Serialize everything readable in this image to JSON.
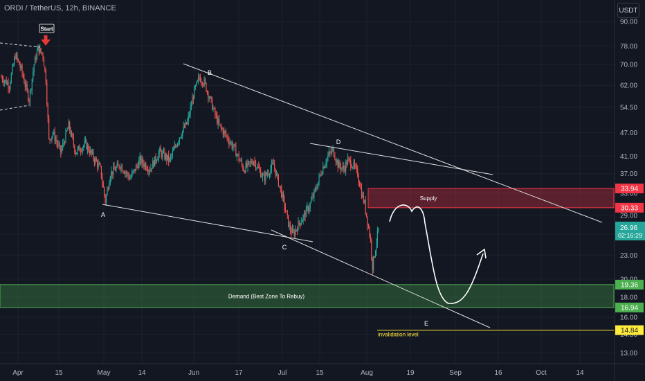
{
  "title": "ORDI / TetherUS, 12h, BINANCE",
  "currency": "USDT",
  "colors": {
    "background": "#131722",
    "grid": "#1e222d",
    "up": "#26a69a",
    "down": "#ef5350",
    "axis_text": "#b2b5be",
    "supply_fill": "rgba(242,54,69,0.32)",
    "supply_border": "#f23645",
    "demand_fill": "rgba(76,175,80,0.30)",
    "demand_border": "#4caf50",
    "invalidation": "#ffeb3b",
    "drawing": "#e0e0e0",
    "last_price_bg": "#26a69a"
  },
  "chart_data": {
    "type": "candlestick",
    "y_scale": "log",
    "ylim": [
      12.3,
      102
    ],
    "y_ticks": [
      "90.00",
      "78.00",
      "70.00",
      "62.00",
      "54.50",
      "47.00",
      "41.00",
      "37.00",
      "33.00",
      "29.00",
      "26.00",
      "23.00",
      "20.00",
      "18.00",
      "16.00",
      "14.50",
      "13.00"
    ],
    "x_ticks": [
      "Apr",
      "15",
      "May",
      "14",
      "Jun",
      "17",
      "Jul",
      "15",
      "Aug",
      "19",
      "Sep",
      "16",
      "Oct",
      "14"
    ],
    "price_tags": [
      {
        "label": "33.94",
        "color": "#f23645"
      },
      {
        "label": "30.33",
        "color": "#f23645"
      },
      {
        "label": "19.36",
        "color": "#4caf50"
      },
      {
        "label": "16.94",
        "color": "#4caf50"
      },
      {
        "label": "14.84",
        "color": "#ffeb3b"
      }
    ],
    "last_price": {
      "value": "26.96",
      "countdown": "02:16:29"
    },
    "zones": [
      {
        "name": "Supply",
        "top": 33.94,
        "bottom": 30.33
      },
      {
        "name": "Demand (Best Zone To Rebuy)",
        "top": 19.36,
        "bottom": 16.94
      }
    ],
    "invalidation": {
      "label": "invalidation level",
      "value": 14.84
    },
    "wave_points": [
      {
        "label": "A",
        "price": 31.5
      },
      {
        "label": "B",
        "price": 66.0
      },
      {
        "label": "C",
        "price": 26.0
      },
      {
        "label": "D",
        "price": 43.5
      },
      {
        "label": "E",
        "price": ""
      }
    ],
    "start_label": "Start",
    "path": [
      {
        "i": 0,
        "c": 65
      },
      {
        "i": 8,
        "c": 62
      },
      {
        "i": 14,
        "c": 74
      },
      {
        "i": 20,
        "c": 68
      },
      {
        "i": 28,
        "c": 57
      },
      {
        "i": 33,
        "c": 70
      },
      {
        "i": 37,
        "c": 77
      },
      {
        "i": 42,
        "c": 74
      },
      {
        "i": 45,
        "c": 64
      },
      {
        "i": 48,
        "c": 45
      },
      {
        "i": 52,
        "c": 47
      },
      {
        "i": 60,
        "c": 42
      },
      {
        "i": 68,
        "c": 49
      },
      {
        "i": 75,
        "c": 42
      },
      {
        "i": 85,
        "c": 44
      },
      {
        "i": 100,
        "c": 38
      },
      {
        "i": 105,
        "c": 31.5
      },
      {
        "i": 110,
        "c": 37
      },
      {
        "i": 120,
        "c": 39
      },
      {
        "i": 130,
        "c": 36
      },
      {
        "i": 140,
        "c": 40
      },
      {
        "i": 150,
        "c": 38
      },
      {
        "i": 160,
        "c": 42
      },
      {
        "i": 170,
        "c": 40
      },
      {
        "i": 180,
        "c": 46
      },
      {
        "i": 188,
        "c": 50
      },
      {
        "i": 195,
        "c": 60
      },
      {
        "i": 200,
        "c": 65
      },
      {
        "i": 205,
        "c": 63
      },
      {
        "i": 210,
        "c": 58
      },
      {
        "i": 215,
        "c": 53
      },
      {
        "i": 220,
        "c": 49
      },
      {
        "i": 225,
        "c": 47
      },
      {
        "i": 235,
        "c": 43
      },
      {
        "i": 245,
        "c": 38
      },
      {
        "i": 255,
        "c": 40
      },
      {
        "i": 265,
        "c": 36
      },
      {
        "i": 275,
        "c": 39
      },
      {
        "i": 283,
        "c": 33
      },
      {
        "i": 287,
        "c": 30
      },
      {
        "i": 291,
        "c": 27
      },
      {
        "i": 295,
        "c": 26
      },
      {
        "i": 300,
        "c": 27.5
      },
      {
        "i": 306,
        "c": 29
      },
      {
        "i": 312,
        "c": 31
      },
      {
        "i": 318,
        "c": 34
      },
      {
        "i": 324,
        "c": 38
      },
      {
        "i": 330,
        "c": 41
      },
      {
        "i": 335,
        "c": 42.5
      },
      {
        "i": 340,
        "c": 39
      },
      {
        "i": 346,
        "c": 38
      },
      {
        "i": 350,
        "c": 40
      },
      {
        "i": 355,
        "c": 39
      },
      {
        "i": 360,
        "c": 37
      },
      {
        "i": 364,
        "c": 33
      },
      {
        "i": 367,
        "c": 31
      },
      {
        "i": 370,
        "c": 28
      },
      {
        "i": 373,
        "c": 25
      },
      {
        "i": 375,
        "c": 21.5
      },
      {
        "i": 378,
        "c": 24
      },
      {
        "i": 381,
        "c": 26.96
      }
    ]
  }
}
